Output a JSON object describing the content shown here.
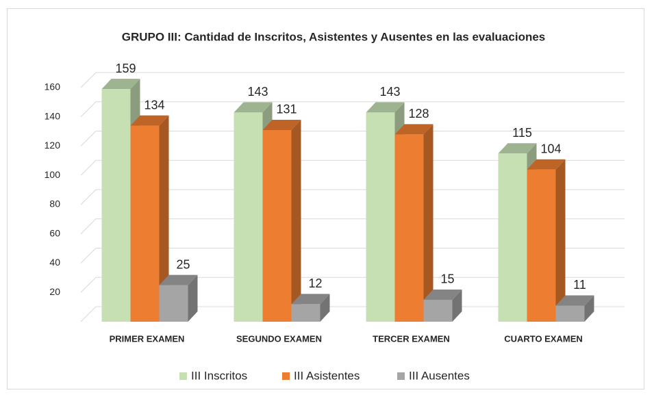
{
  "chart_data": {
    "type": "bar3d",
    "title": "GRUPO III: Cantidad de Inscritos, Asistentes y Ausentes en las evaluaciones",
    "categories": [
      "PRIMER EXAMEN",
      "SEGUNDO EXAMEN",
      "TERCER EXAMEN",
      "CUARTO EXAMEN"
    ],
    "series": [
      {
        "name": "III Inscritos",
        "color": "#c6e0b4",
        "values": [
          159,
          143,
          143,
          115
        ]
      },
      {
        "name": "III Asistentes",
        "color": "#ed7d31",
        "values": [
          134,
          131,
          128,
          104
        ]
      },
      {
        "name": "III Ausentes",
        "color": "#a5a5a5",
        "values": [
          25,
          12,
          15,
          11
        ]
      }
    ],
    "ylim": [
      0,
      160
    ],
    "yticks": [
      20,
      40,
      60,
      80,
      100,
      120,
      140,
      160
    ],
    "grid": true,
    "legend": "bottom"
  }
}
